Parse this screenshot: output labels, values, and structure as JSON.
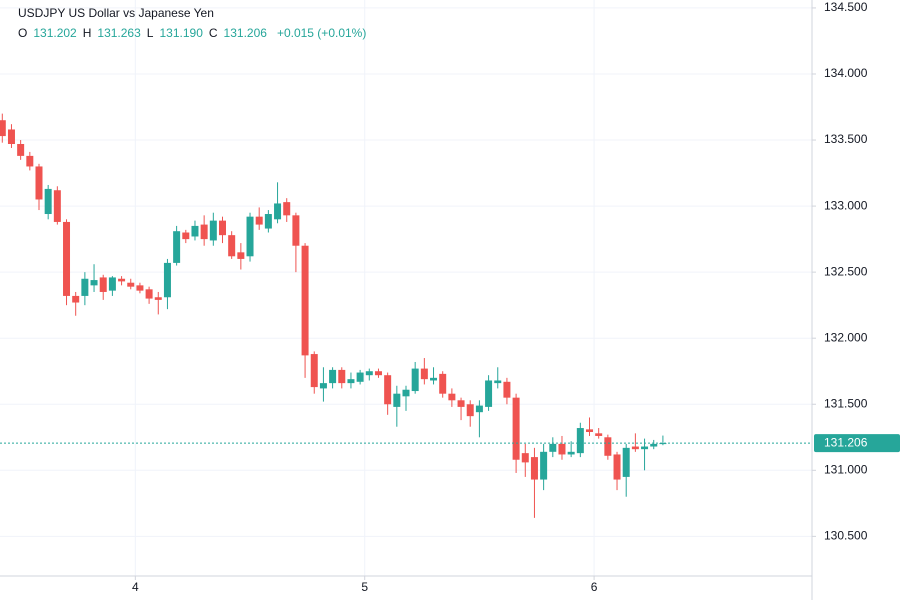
{
  "chart_data": {
    "type": "candlestick",
    "title": "USDJPY US Dollar vs Japanese Yen",
    "header_values": [
      {
        "name": "O",
        "value": 131.202,
        "label": "131.202"
      },
      {
        "name": "H",
        "value": 131.263,
        "label": "131.263"
      },
      {
        "name": "L",
        "value": 131.19,
        "label": "131.190"
      },
      {
        "name": "C",
        "value": 131.206,
        "label": "131.206"
      }
    ],
    "change": "+0.015 (+0.01%)",
    "up_color": "#26a69a",
    "down_color": "#ef5350",
    "grid": true,
    "x": [
      3.42,
      3.46,
      3.5,
      3.54,
      3.58,
      3.62,
      3.66,
      3.7,
      3.74,
      3.78,
      3.82,
      3.86,
      3.9,
      3.94,
      3.98,
      4.02,
      4.06,
      4.1,
      4.14,
      4.18,
      4.22,
      4.26,
      4.3,
      4.34,
      4.38,
      4.42,
      4.46,
      4.5,
      4.54,
      4.58,
      4.62,
      4.66,
      4.7,
      4.74,
      4.78,
      4.82,
      4.86,
      4.9,
      4.94,
      4.98,
      5.02,
      5.06,
      5.1,
      5.14,
      5.18,
      5.22,
      5.26,
      5.3,
      5.34,
      5.38,
      5.42,
      5.46,
      5.5,
      5.54,
      5.58,
      5.62,
      5.66,
      5.7,
      5.74,
      5.78,
      5.82,
      5.86,
      5.9,
      5.94,
      5.98,
      6.02,
      6.06,
      6.1,
      6.14,
      6.18,
      6.22,
      6.26,
      6.3
    ],
    "open": [
      133.65,
      133.58,
      133.47,
      133.38,
      133.3,
      132.94,
      133.12,
      132.88,
      132.32,
      132.32,
      132.4,
      132.46,
      132.36,
      132.45,
      132.42,
      132.4,
      132.37,
      132.31,
      132.31,
      132.57,
      132.8,
      132.77,
      132.86,
      132.74,
      132.89,
      132.78,
      132.65,
      132.62,
      132.92,
      132.83,
      132.9,
      133.03,
      132.93,
      132.7,
      131.88,
      131.62,
      131.66,
      131.76,
      131.66,
      131.67,
      131.72,
      131.75,
      131.72,
      131.48,
      131.56,
      131.6,
      131.77,
      131.68,
      131.73,
      131.58,
      131.53,
      131.5,
      131.44,
      131.48,
      131.66,
      131.67,
      131.55,
      131.13,
      131.1,
      130.93,
      131.14,
      131.2,
      131.12,
      131.13,
      131.31,
      131.28,
      131.25,
      131.12,
      130.95,
      131.18,
      131.16,
      131.18,
      131.202
    ],
    "high": [
      133.7,
      133.62,
      133.5,
      133.41,
      133.32,
      133.16,
      133.15,
      132.9,
      132.35,
      132.5,
      132.56,
      132.48,
      132.47,
      132.47,
      132.45,
      132.42,
      132.39,
      132.35,
      132.6,
      132.85,
      132.82,
      132.89,
      132.93,
      132.95,
      132.92,
      132.81,
      132.72,
      132.95,
      132.99,
      132.97,
      133.18,
      133.06,
      132.95,
      132.72,
      131.9,
      131.78,
      131.78,
      131.78,
      131.74,
      131.76,
      131.77,
      131.77,
      131.74,
      131.64,
      131.64,
      131.82,
      131.85,
      131.78,
      131.75,
      131.62,
      131.55,
      131.53,
      131.53,
      131.72,
      131.78,
      131.7,
      131.58,
      131.2,
      131.17,
      131.2,
      131.25,
      131.26,
      131.22,
      131.36,
      131.4,
      131.32,
      131.27,
      131.14,
      131.2,
      131.28,
      131.24,
      131.23,
      131.263
    ],
    "low": [
      133.48,
      133.44,
      133.35,
      133.27,
      132.97,
      132.9,
      132.86,
      132.25,
      132.17,
      132.25,
      132.35,
      132.29,
      132.32,
      132.4,
      132.37,
      132.34,
      132.26,
      132.18,
      132.22,
      132.55,
      132.72,
      132.74,
      132.7,
      132.7,
      132.72,
      132.6,
      132.52,
      132.58,
      132.82,
      132.8,
      132.87,
      132.88,
      132.5,
      131.7,
      131.58,
      131.52,
      131.62,
      131.62,
      131.62,
      131.65,
      131.68,
      131.7,
      131.42,
      131.33,
      131.45,
      131.58,
      131.65,
      131.65,
      131.55,
      131.48,
      131.38,
      131.33,
      131.25,
      131.45,
      131.62,
      131.5,
      130.98,
      130.95,
      130.64,
      130.85,
      131.1,
      131.08,
      131.1,
      131.1,
      131.26,
      131.24,
      131.08,
      130.85,
      130.8,
      131.14,
      131.0,
      131.16,
      131.19
    ],
    "close": [
      133.53,
      133.47,
      133.38,
      133.3,
      133.05,
      133.13,
      132.88,
      132.32,
      132.27,
      132.45,
      132.44,
      132.35,
      132.46,
      132.43,
      132.39,
      132.36,
      132.3,
      132.29,
      132.57,
      132.81,
      132.75,
      132.85,
      132.75,
      132.89,
      132.78,
      132.62,
      132.6,
      132.92,
      132.86,
      132.94,
      133.02,
      132.93,
      132.7,
      131.87,
      131.63,
      131.66,
      131.76,
      131.66,
      131.69,
      131.74,
      131.75,
      131.72,
      131.5,
      131.58,
      131.61,
      131.77,
      131.69,
      131.7,
      131.58,
      131.53,
      131.48,
      131.41,
      131.49,
      131.68,
      131.68,
      131.55,
      131.08,
      131.06,
      130.93,
      131.14,
      131.2,
      131.12,
      131.14,
      131.32,
      131.29,
      131.26,
      131.11,
      130.93,
      131.17,
      131.16,
      131.18,
      131.2,
      131.206
    ],
    "last_price": {
      "value": 131.206,
      "label": "131.206"
    },
    "xlim": [
      3.41,
      6.95
    ],
    "xticks": [
      4,
      5,
      6
    ],
    "ylim": [
      130.2,
      134.56
    ],
    "yticks": [
      {
        "value": 130.5,
        "label": "130.500"
      },
      {
        "value": 131,
        "label": "131.000"
      },
      {
        "value": 131.5,
        "label": "131.500"
      },
      {
        "value": 132,
        "label": "132.000"
      },
      {
        "value": 132.5,
        "label": "132.500"
      },
      {
        "value": 133,
        "label": "133.000"
      },
      {
        "value": 133.5,
        "label": "133.500"
      },
      {
        "value": 134,
        "label": "134.000"
      },
      {
        "value": 134.5,
        "label": "134.500"
      }
    ]
  }
}
